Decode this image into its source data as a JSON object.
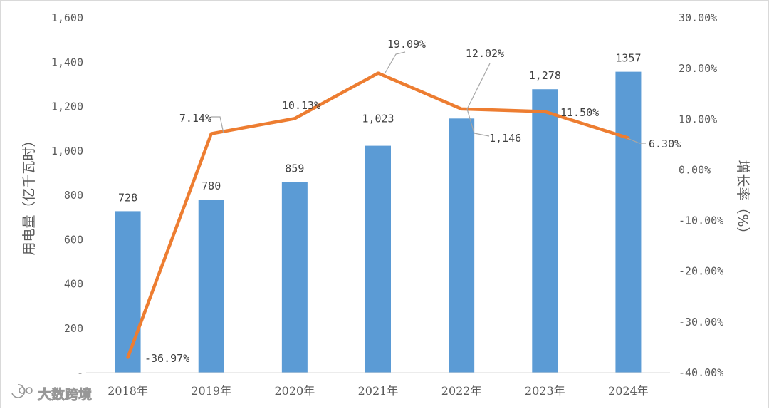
{
  "chart_data": {
    "type": "bar+line",
    "categories": [
      "2018年",
      "2019年",
      "2020年",
      "2021年",
      "2022年",
      "2023年",
      "2024年"
    ],
    "series": [
      {
        "name": "用电量",
        "type": "bar",
        "axis": "left",
        "color": "#5b9bd5",
        "values": [
          728,
          780,
          859,
          1023,
          1146,
          1278,
          1357
        ],
        "labels": [
          "728",
          "780",
          "859",
          "1,023",
          "1,146",
          "1,278",
          "1357"
        ]
      },
      {
        "name": "增长率",
        "type": "line",
        "axis": "right",
        "color": "#ed7d31",
        "values": [
          -36.97,
          7.14,
          10.13,
          19.09,
          12.02,
          11.5,
          6.3
        ],
        "labels": [
          "-36.97%",
          "7.14%",
          "10.13%",
          "19.09%",
          "12.02%",
          "11.50%",
          "6.30%"
        ]
      }
    ],
    "y_left": {
      "label": "用电量（亿千瓦时）",
      "ylim": [
        0,
        1600
      ],
      "ticks": [
        0,
        200,
        400,
        600,
        800,
        1000,
        1200,
        1400,
        1600
      ],
      "tick_labels": [
        "-",
        "200",
        "400",
        "600",
        "800",
        "1,000",
        "1,200",
        "1,400",
        "1,600"
      ]
    },
    "y_right": {
      "label": "增长率（%）",
      "ylim": [
        -40,
        30
      ],
      "ticks": [
        -40,
        -30,
        -20,
        -10,
        0,
        10,
        20,
        30
      ],
      "tick_labels": [
        "-40.00%",
        "-30.00%",
        "-20.00%",
        "-10.00%",
        "0.00%",
        "10.00%",
        "20.00%",
        "30.00%"
      ]
    },
    "grid": false,
    "legend": "none"
  },
  "watermark": {
    "text": "大数跨境",
    "icon": "logo-icon"
  }
}
